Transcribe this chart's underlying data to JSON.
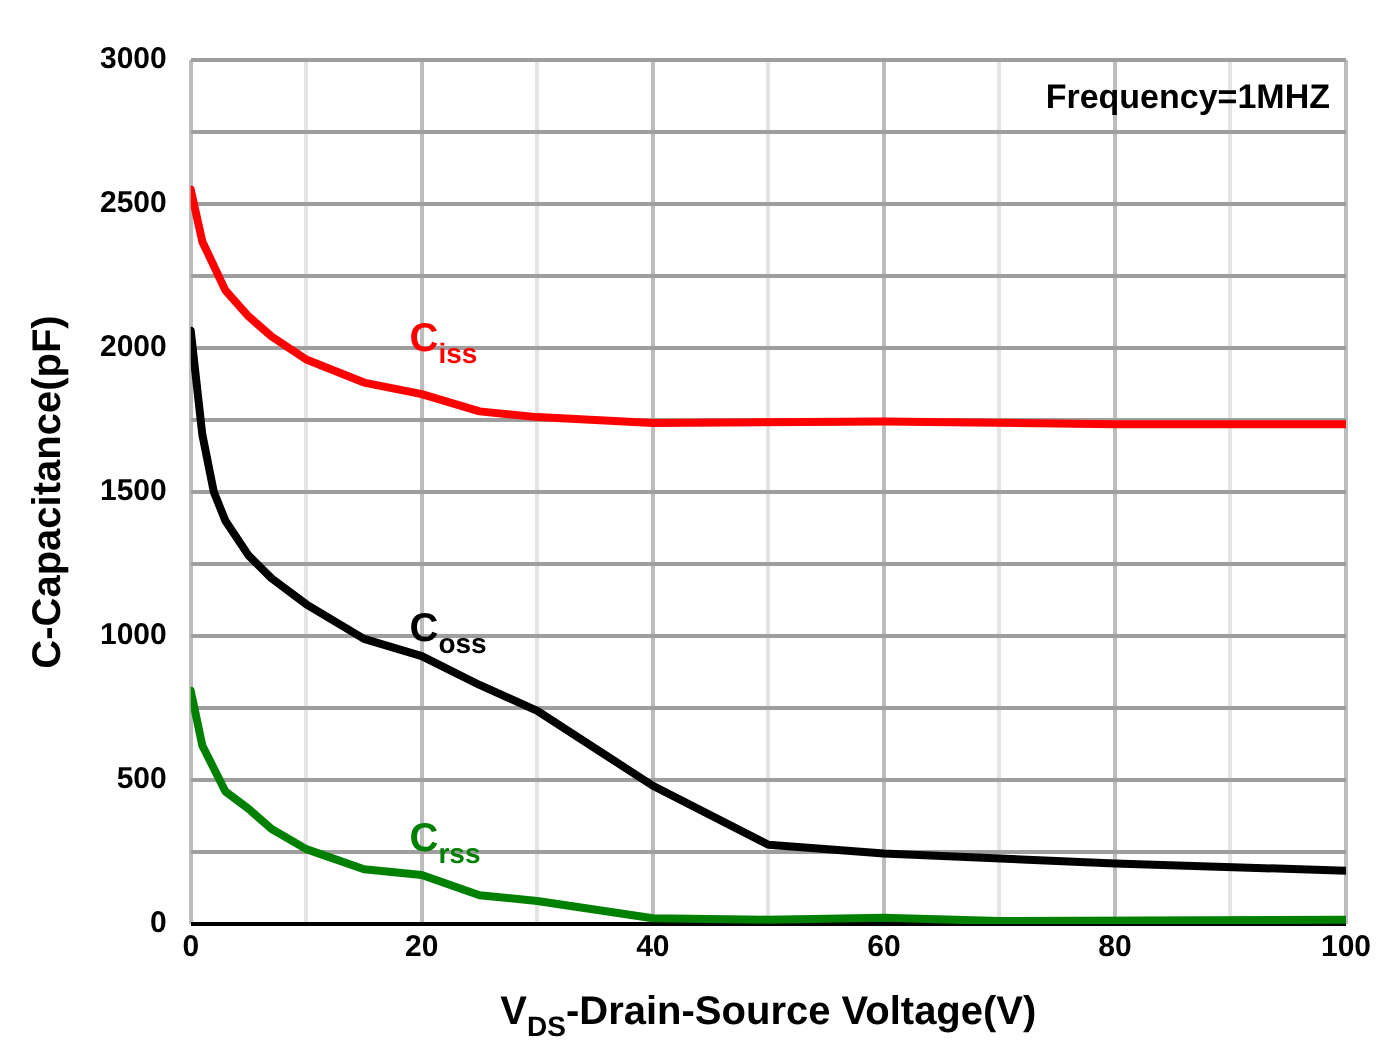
{
  "chart_data": {
    "type": "line",
    "xlabel": "V$_{DS}$-Drain-Source Voltage(V)",
    "ylabel": "C-Capacitance(pF)",
    "annotations": [
      "Frequency=1MHZ"
    ],
    "xlim": [
      0,
      100
    ],
    "xticks": [
      0,
      {
        "value": 10,
        "label": null
      },
      20,
      {
        "value": 30,
        "label": null
      },
      40,
      {
        "value": 50,
        "label": null
      },
      60,
      {
        "value": 70,
        "label": null
      },
      80,
      {
        "value": 90,
        "label": null
      },
      100
    ],
    "ylim": [
      0,
      3000
    ],
    "yticks": [
      0,
      {
        "value": 250,
        "label": null
      },
      500,
      {
        "value": 750,
        "label": null
      },
      1000,
      {
        "value": 1250,
        "label": null
      },
      1500,
      {
        "value": 1750,
        "label": null
      },
      2000,
      {
        "value": 2250,
        "label": null
      },
      2500,
      {
        "value": 2750,
        "label": null
      },
      3000
    ],
    "grid": true,
    "legend": false,
    "marker": "none",
    "line_style": "solid",
    "series": [
      {
        "name": "C$_{iss}$",
        "color": "#ff0000",
        "x": [
          0,
          1,
          3,
          5,
          7,
          10,
          15,
          20,
          25,
          30,
          40,
          60,
          80,
          100
        ],
        "values": [
          2550,
          2370,
          2200,
          2110,
          2040,
          1960,
          1880,
          1840,
          1780,
          1760,
          1740,
          1745,
          1735,
          1735
        ]
      },
      {
        "name": "C$_{oss}$",
        "color": "#000000",
        "x": [
          0,
          1,
          2,
          3,
          5,
          7,
          10,
          15,
          20,
          25,
          30,
          40,
          50,
          60,
          80,
          100
        ],
        "values": [
          2060,
          1700,
          1500,
          1400,
          1280,
          1200,
          1110,
          990,
          930,
          830,
          740,
          480,
          275,
          245,
          210,
          185
        ]
      },
      {
        "name": "C$_{rss}$",
        "color": "#008000",
        "x": [
          0,
          1,
          3,
          5,
          7,
          10,
          15,
          20,
          25,
          30,
          40,
          50,
          60,
          70,
          100
        ],
        "values": [
          810,
          620,
          460,
          400,
          330,
          260,
          190,
          170,
          100,
          80,
          20,
          15,
          22,
          10,
          15
        ]
      }
    ]
  }
}
